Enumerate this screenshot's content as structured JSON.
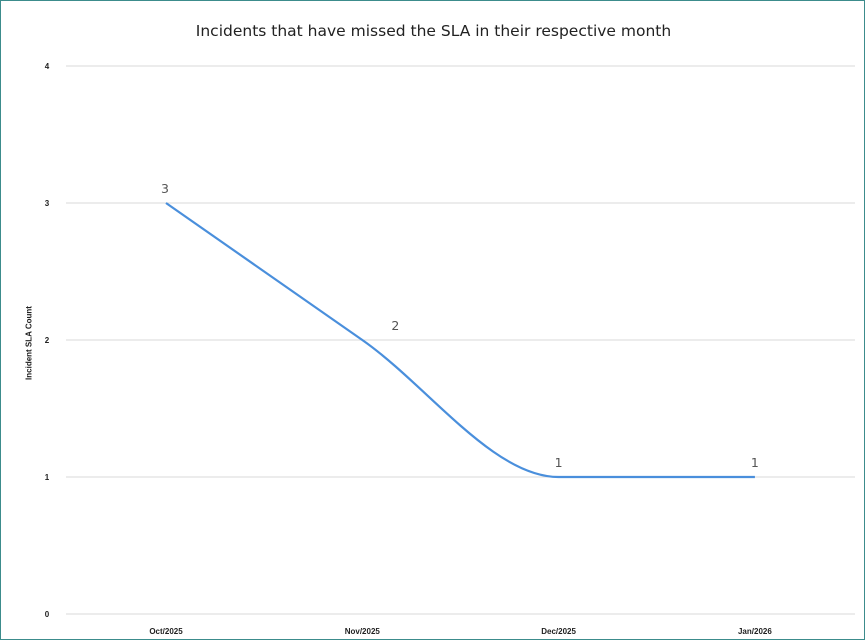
{
  "chart_data": {
    "type": "line",
    "title": "Incidents that have missed the SLA in their respective month",
    "xlabel": "",
    "ylabel": "Incident SLA Count",
    "categories": [
      "Oct/2025",
      "Nov/2025",
      "Dec/2025",
      "Jan/2026"
    ],
    "series": [
      {
        "values": [
          3,
          2,
          1,
          1
        ],
        "color": "#4a8fdc"
      }
    ],
    "ylim": [
      0,
      4
    ],
    "yticks": [
      0,
      1,
      2,
      3,
      4
    ],
    "data_labels": [
      "3",
      "2",
      "1",
      "1"
    ],
    "grid": true,
    "legend": "none",
    "smooth": true
  },
  "colors": {
    "frame_border": "#3c8c8c",
    "gridline": "#d9d9d9",
    "line": "#4a8fdc"
  }
}
